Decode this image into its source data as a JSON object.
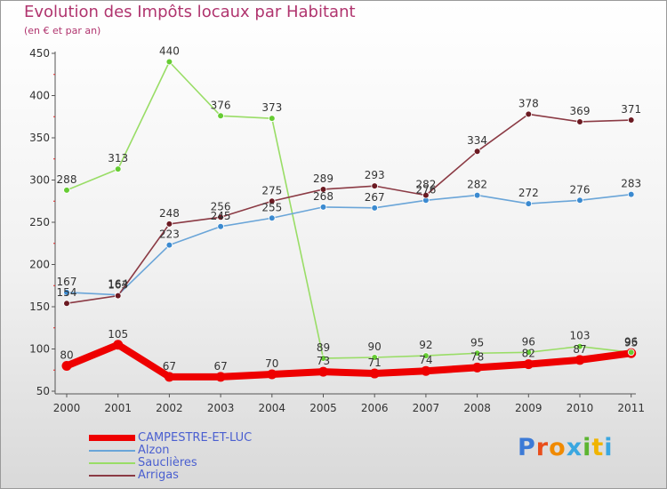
{
  "chart_data": {
    "type": "line",
    "title": "Evolution des Impôts locaux par Habitant",
    "subtitle": "(en € et par an)",
    "categories": [
      "2000",
      "2001",
      "2002",
      "2003",
      "2004",
      "2005",
      "2006",
      "2007",
      "2008",
      "2009",
      "2010",
      "2011"
    ],
    "ylim": [
      50,
      450
    ],
    "yticks": [
      50,
      100,
      150,
      200,
      250,
      300,
      350,
      400,
      450
    ],
    "grid": false,
    "series": [
      {
        "name": "Sauclières",
        "color": "#99dd66",
        "marker": "#66cc33",
        "values": [
          288,
          313,
          440,
          376,
          373,
          89,
          90,
          92,
          95,
          96,
          103,
          96
        ]
      },
      {
        "name": "Alzon",
        "color": "#6aa5d8",
        "marker": "#3b8ad0",
        "values": [
          167,
          164,
          223,
          245,
          255,
          268,
          267,
          276,
          282,
          272,
          276,
          283
        ]
      },
      {
        "name": "Arrigas",
        "color": "#8b3a44",
        "marker": "#6b1a22",
        "values": [
          154,
          163,
          248,
          256,
          275,
          289,
          293,
          282,
          334,
          378,
          369,
          371
        ]
      },
      {
        "name": "CAMPESTRE-ET-LUC",
        "color": "#ee0000",
        "marker": "#ee0000",
        "values": [
          80,
          105,
          67,
          67,
          70,
          73,
          71,
          74,
          78,
          82,
          87,
          95
        ]
      }
    ],
    "legend_order": [
      "CAMPESTRE-ET-LUC",
      "Alzon",
      "Sauclières",
      "Arrigas"
    ]
  },
  "logo_text": "Proxiti"
}
